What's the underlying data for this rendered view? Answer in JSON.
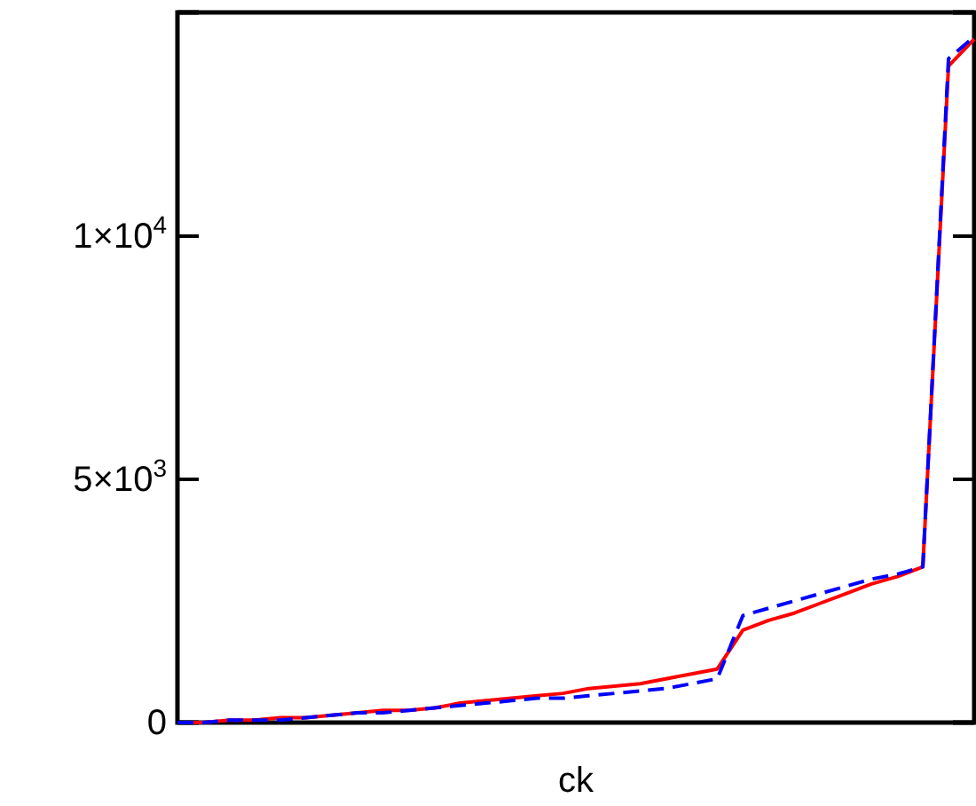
{
  "chart_data": {
    "type": "line",
    "xlabel": "ck",
    "categories": [
      null,
      null,
      null,
      null,
      null,
      null,
      null,
      null,
      null,
      null,
      null,
      null,
      null,
      null,
      null,
      null,
      null,
      null,
      null,
      null,
      null,
      null,
      null,
      null,
      null,
      null,
      null,
      null,
      null,
      null,
      null,
      null
    ],
    "ylim": [
      0,
      14600
    ],
    "yticks": [
      0,
      {
        "value": 5000,
        "label": "5×10$^{3}$"
      },
      {
        "value": 10000,
        "label": "1×10$^{4}$"
      }
    ],
    "tick_labels": "y",
    "grid": false,
    "series": [
      {
        "color": "#ff0000",
        "line_style": "solid",
        "values": [
          0,
          0,
          50,
          50,
          100,
          100,
          150,
          200,
          250,
          250,
          300,
          400,
          450,
          500,
          550,
          600,
          700,
          750,
          800,
          900,
          1000,
          1100,
          1900,
          2100,
          2250,
          2450,
          2650,
          2850,
          3000,
          3200,
          13500,
          14050
        ]
      },
      {
        "color": "#0000ff",
        "line_style": "dashed",
        "values": [
          0,
          0,
          50,
          50,
          50,
          100,
          150,
          200,
          200,
          250,
          300,
          350,
          400,
          450,
          500,
          500,
          550,
          600,
          650,
          700,
          800,
          900,
          2200,
          2350,
          2500,
          2650,
          2800,
          2950,
          3050,
          3200,
          13650,
          14100
        ]
      }
    ]
  }
}
